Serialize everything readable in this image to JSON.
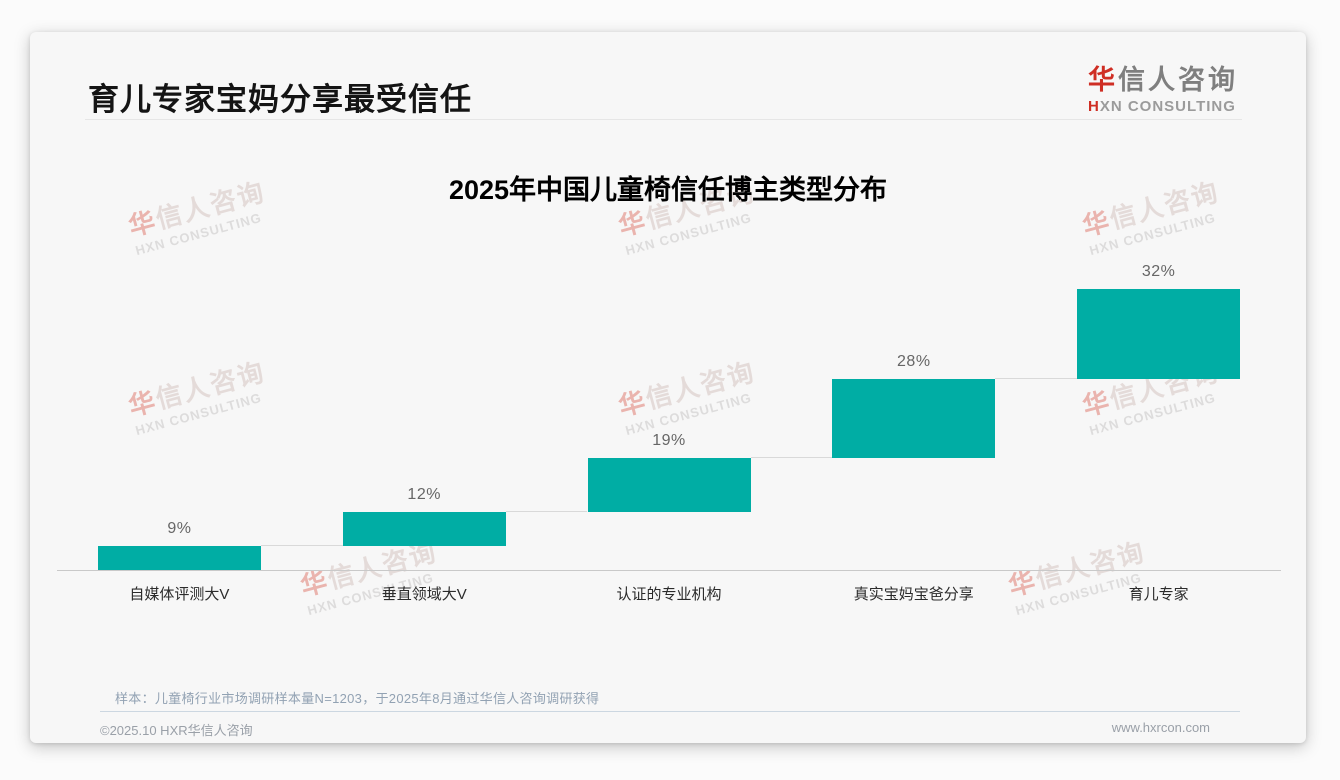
{
  "page": {
    "title": "育儿专家宝妈分享最受信任"
  },
  "brand": {
    "name_accent": "华",
    "name_rest": "信人咨询",
    "tagline_accent": "H",
    "tagline_rest": "XN CONSULTING"
  },
  "watermark": {
    "line1_accent": "华",
    "line1_rest": "信人咨询",
    "line2": "HXN CONSULTING"
  },
  "chart_data": {
    "type": "bar",
    "subtype": "stepped-cumulative-waterfall",
    "title": "2025年中国儿童椅信任博主类型分布",
    "categories": [
      "自媒体评测大V",
      "垂直领域大V",
      "认证的专业机构",
      "真实宝妈宝爸分享",
      "育儿专家"
    ],
    "values": [
      9,
      12,
      19,
      28,
      32
    ],
    "value_labels": [
      "9%",
      "12%",
      "19%",
      "28%",
      "32%"
    ],
    "unit": "%",
    "ylim": [
      0,
      100
    ],
    "xlabel": "",
    "ylabel": "",
    "grid": false,
    "legend": false,
    "bar_color": "#00ada4"
  },
  "footnote": {
    "note": "样本：儿童椅行业市场调研样本量N=1203，于2025年8月通过华信人咨询调研获得",
    "copyright": "©2025.10 HXR华信人咨询",
    "website": "www.hxrcon.com"
  },
  "colors": {
    "accent_red": "#cf2e24",
    "bar_teal": "#00ada4",
    "axis_gray": "#c9c9c9",
    "connector_gray": "#d9d9d9"
  }
}
